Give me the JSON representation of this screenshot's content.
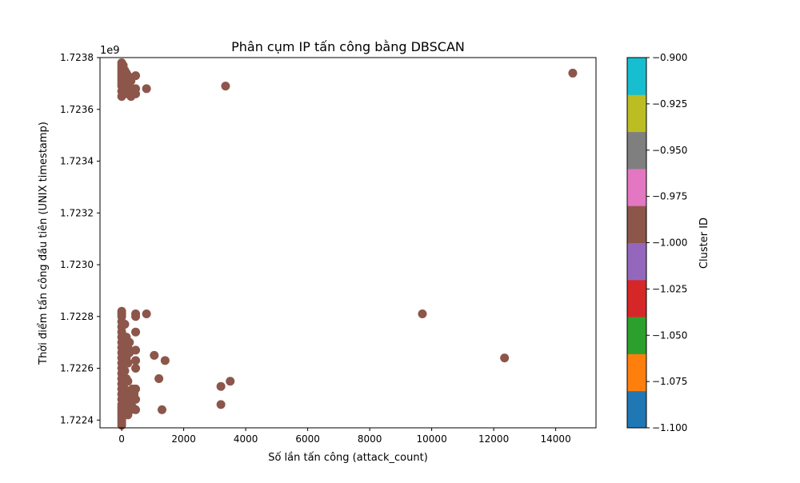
{
  "chart_data": {
    "type": "scatter",
    "title": "Phân cụm IP tấn công bằng DBSCAN",
    "xlabel": "Số lần tấn công (attack_count)",
    "ylabel": "Thời điểm tấn công đầu tiên (UNIX timestamp)",
    "y_offset_label": "1e9",
    "xlim": [
      -700,
      15300
    ],
    "ylim": [
      1.72237,
      1.7238
    ],
    "x_ticks": [
      0,
      2000,
      4000,
      6000,
      8000,
      10000,
      12000,
      14000
    ],
    "x_tick_labels": [
      "0",
      "2000",
      "4000",
      "6000",
      "8000",
      "10000",
      "12000",
      "14000"
    ],
    "y_ticks": [
      1.7224,
      1.7226,
      1.7228,
      1.723,
      1.7232,
      1.7234,
      1.7236,
      1.7238
    ],
    "y_tick_labels": [
      "1.7224",
      "1.7226",
      "1.7228",
      "1.7230",
      "1.7232",
      "1.7234",
      "1.7236",
      "1.7238"
    ],
    "grid": false,
    "marker_color": "#8c564b",
    "colorbar": {
      "label": "Cluster ID",
      "range": [
        -1.1,
        -0.9
      ],
      "ticks": [
        -1.1,
        -1.075,
        -1.05,
        -1.025,
        -1.0,
        -0.975,
        -0.95,
        -0.925,
        -0.9
      ],
      "tick_labels": [
        "−1.100",
        "−1.075",
        "−1.050",
        "−1.025",
        "−1.000",
        "−0.975",
        "−0.950",
        "−0.925",
        "−0.900"
      ],
      "colors": [
        "#1f77b4",
        "#ff7f0e",
        "#2ca02c",
        "#d62728",
        "#9467bd",
        "#8c564b",
        "#e377c2",
        "#7f7f7f",
        "#bcbd22",
        "#17becf"
      ]
    },
    "series": [
      {
        "cluster": -1,
        "x": [
          0,
          0,
          0,
          0,
          0,
          0,
          0,
          0,
          0,
          0,
          0,
          0,
          50,
          100,
          150,
          200,
          250,
          300,
          350,
          100,
          200,
          300,
          150,
          250,
          450,
          450,
          450,
          800,
          3350,
          14550,
          0,
          0,
          0,
          0,
          0,
          0,
          0,
          0,
          0,
          0,
          0,
          0,
          0,
          0,
          0,
          0,
          0,
          0,
          0,
          0,
          0,
          0,
          0,
          0,
          0,
          0,
          0,
          0,
          100,
          150,
          200,
          250,
          150,
          200,
          100,
          250,
          150,
          200,
          450,
          450,
          450,
          450,
          450,
          450,
          100,
          150,
          200,
          250,
          300,
          350,
          400,
          450,
          450,
          450,
          100,
          150,
          200,
          250,
          300,
          350,
          800,
          1050,
          1400,
          1200,
          1300,
          3200,
          3500,
          3200,
          9700,
          12350
        ],
        "y": [
          1.72378,
          1.72377,
          1.72376,
          1.72375,
          1.72374,
          1.72373,
          1.72372,
          1.72371,
          1.7237,
          1.72369,
          1.72367,
          1.72365,
          1.72377,
          1.72375,
          1.72374,
          1.72373,
          1.72372,
          1.72371,
          1.72367,
          1.72369,
          1.72366,
          1.72365,
          1.72368,
          1.7237,
          1.72373,
          1.72368,
          1.72366,
          1.72368,
          1.72369,
          1.72374,
          1.72282,
          1.72281,
          1.7228,
          1.72278,
          1.72276,
          1.72274,
          1.72272,
          1.7227,
          1.72268,
          1.72266,
          1.72264,
          1.72262,
          1.7226,
          1.72258,
          1.72256,
          1.72254,
          1.72252,
          1.7225,
          1.72248,
          1.72246,
          1.72244,
          1.72243,
          1.72242,
          1.72241,
          1.7224,
          1.72239,
          1.72238,
          1.72245,
          1.72277,
          1.72272,
          1.72268,
          1.7227,
          1.72264,
          1.72262,
          1.72259,
          1.72266,
          1.72256,
          1.72255,
          1.72281,
          1.7228,
          1.72274,
          1.72267,
          1.72263,
          1.7226,
          1.72252,
          1.7225,
          1.72248,
          1.72246,
          1.72244,
          1.72252,
          1.7225,
          1.72252,
          1.72248,
          1.72244,
          1.72245,
          1.72243,
          1.72242,
          1.72249,
          1.72247,
          1.72245,
          1.72281,
          1.72265,
          1.72263,
          1.72256,
          1.72244,
          1.72253,
          1.72255,
          1.72246,
          1.72281,
          1.72264
        ]
      }
    ]
  }
}
